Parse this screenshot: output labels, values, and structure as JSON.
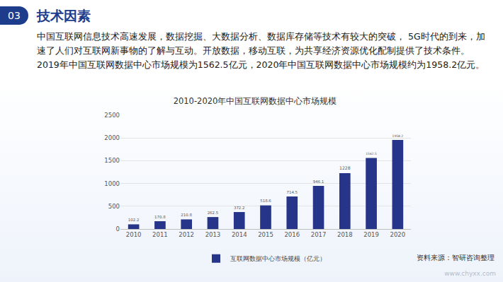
{
  "header": {
    "number": "03",
    "title": "技术因素"
  },
  "text": "中国互联网信息技术高速发展，数据挖掘、大数据分析、数据库存储等技术有较大的突破， 5G时代的到来，加速了人们对互联网新事物的了解与互动。开放数据，移动互联，为共享经济资源优化配制提供了技术条件。2019年中国互联网数据中心市场规模为1562.5亿元，2020年中国互联网数据中心市场规模约为1958.2亿元。",
  "chart_data": {
    "type": "bar",
    "title": "2010-2020年中国互联网数据中心市场规模",
    "categories": [
      "2010",
      "2011",
      "2012",
      "2013",
      "2014",
      "2015",
      "2016",
      "2017",
      "2018",
      "2019",
      "2020"
    ],
    "series": [
      {
        "name": "互联网数据中心市场规模（亿元）",
        "color": "#26348a",
        "values": [
          102.2,
          170.8,
          210.8,
          262.5,
          372.2,
          518.6,
          714.5,
          946.1,
          1228,
          1562.5,
          1958.2
        ]
      }
    ],
    "ylim": [
      0,
      2500
    ],
    "yticks": [
      0,
      500,
      1000,
      1500,
      2000,
      2500
    ],
    "grid": true,
    "data_labels": true,
    "legend": "bottom"
  },
  "source": "资料来源：智研咨询整理",
  "watermark": "www.chyxx.com"
}
